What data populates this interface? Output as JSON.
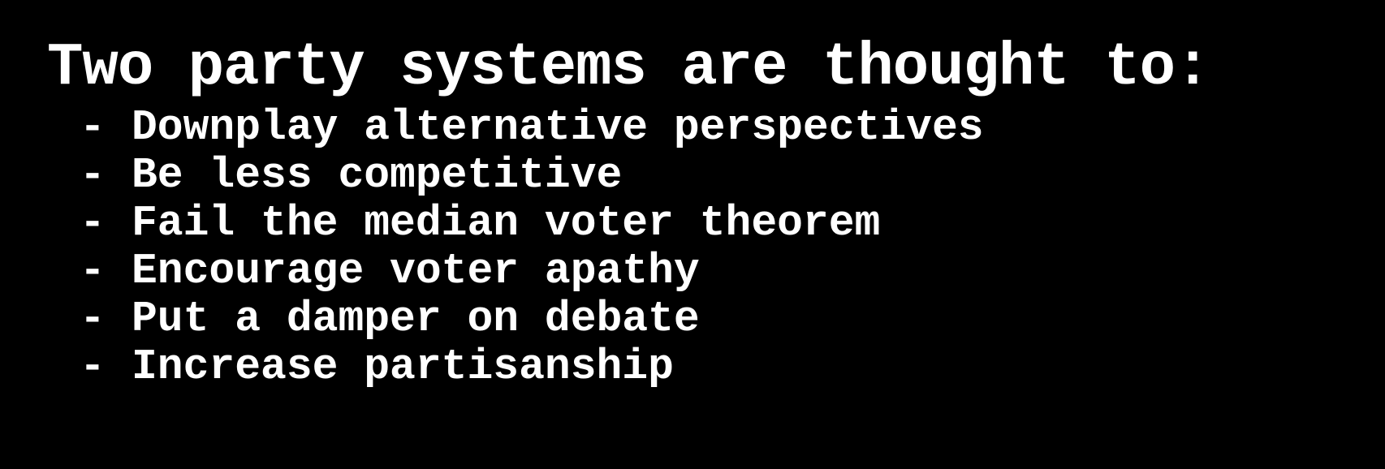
{
  "slide": {
    "title": "Two party systems are thought to:",
    "bullet_marker": "-",
    "bullets": [
      "Downplay alternative perspectives",
      "Be less competitive",
      "Fail the median voter theorem",
      "Encourage voter apathy",
      "Put a damper on debate",
      "Increase partisanship"
    ]
  },
  "colors": {
    "background": "#000000",
    "text": "#ffffff"
  }
}
